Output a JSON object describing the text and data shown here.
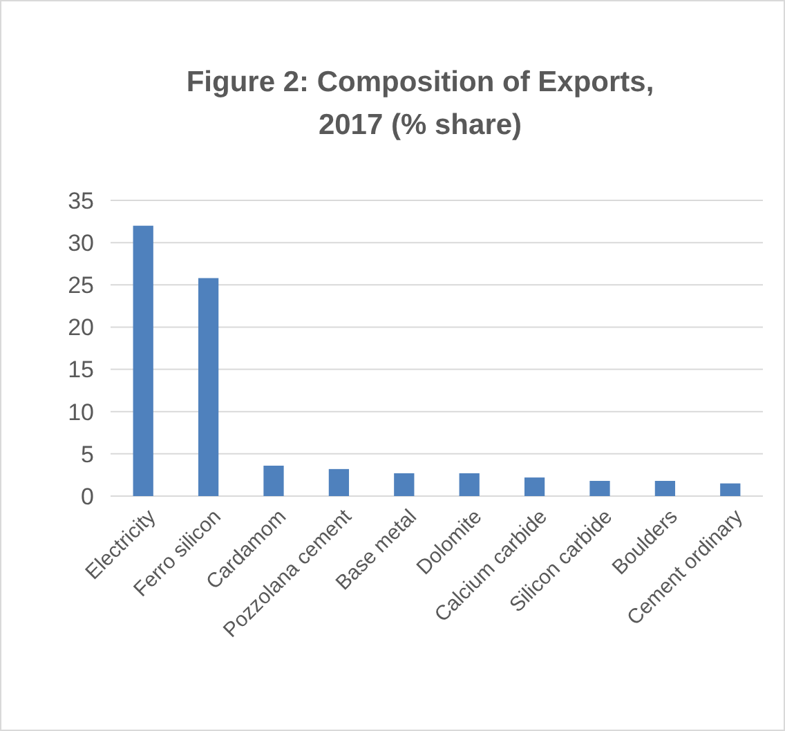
{
  "chart_data": {
    "type": "bar",
    "title": "Figure 2: Composition of Exports, 2017 (% share)",
    "categories": [
      "Electricity",
      "Ferro silicon",
      "Cardamom",
      "Pozzolana cement",
      "Base metal",
      "Dolomite",
      "Calcium carbide",
      "Silicon carbide",
      "Boulders",
      "Cement ordinary"
    ],
    "values": [
      32.0,
      25.8,
      3.6,
      3.2,
      2.7,
      2.7,
      2.2,
      1.8,
      1.8,
      1.5
    ],
    "color": "#4f81bd",
    "ylim": [
      0,
      35
    ],
    "yticks": [
      0,
      5,
      10,
      15,
      20,
      25,
      30,
      35
    ],
    "grid": "y"
  }
}
